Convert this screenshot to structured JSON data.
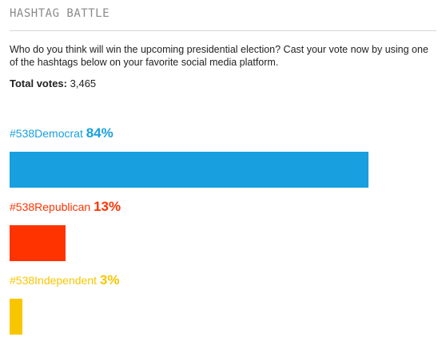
{
  "header": {
    "title": "HASHTAG BATTLE"
  },
  "question": "Who do you think will win the upcoming presidential election? Cast your vote now by using one of the hashtags below on your favorite social media platform.",
  "total": {
    "label": "Total votes:",
    "value": "3,465"
  },
  "options": [
    {
      "tag": "#538Democrat",
      "percent_label": "84%",
      "percent": 84,
      "color": "#179fdf"
    },
    {
      "tag": "#538Republican",
      "percent_label": "13%",
      "percent": 13,
      "color": "#ff3300"
    },
    {
      "tag": "#538Independent",
      "percent_label": "3%",
      "percent": 3,
      "color": "#f8c600"
    }
  ]
}
